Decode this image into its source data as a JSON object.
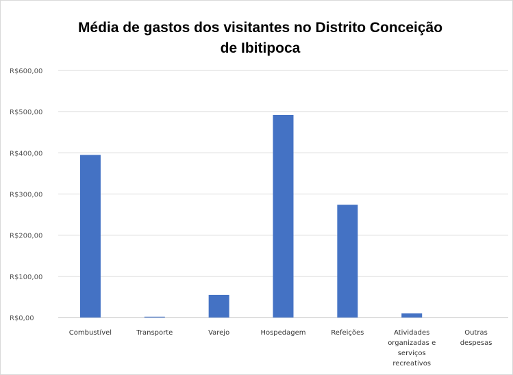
{
  "chart_data": {
    "type": "bar",
    "title_lines": [
      "Média de gastos dos visitantes no Distrito Conceição",
      "de Ibitipoca"
    ],
    "categories": [
      [
        "Combustível"
      ],
      [
        "Transporte"
      ],
      [
        "Varejo"
      ],
      [
        "Hospedagem"
      ],
      [
        "Refeições"
      ],
      [
        "Atividades",
        "organizadas e",
        "serviços",
        "recreativos"
      ],
      [
        "Outras",
        "despesas"
      ]
    ],
    "values": [
      395,
      2,
      55,
      492,
      274,
      10,
      0
    ],
    "ylim": [
      0,
      600
    ],
    "yticks": [
      0,
      100,
      200,
      300,
      400,
      500,
      600
    ],
    "ytick_labels": [
      "R$0,00",
      "R$100,00",
      "R$200,00",
      "R$300,00",
      "R$400,00",
      "R$500,00",
      "R$600,00"
    ],
    "grid": true,
    "bar_color": "#4472c4",
    "grid_color": "#d9d9d9"
  }
}
